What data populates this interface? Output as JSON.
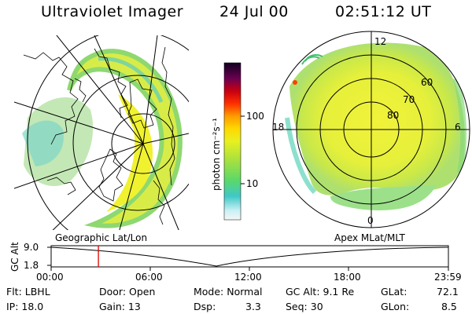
{
  "header": {
    "instrument": "Ultraviolet Imager",
    "date": "24 Jul 00",
    "time": "02:51:12 UT"
  },
  "colorbar": {
    "unit_label": "photon cm⁻²s⁻¹",
    "ticks": [
      "100",
      "10"
    ],
    "scale": "log"
  },
  "panels": {
    "left_caption": "Geographic Lat/Lon",
    "right_caption": "Apex MLat/MLT"
  },
  "polar_plot": {
    "mlt_labels": [
      "12",
      "18",
      "6",
      "0"
    ],
    "lat_labels": [
      "60",
      "70",
      "80"
    ]
  },
  "altitude_plot": {
    "ylabel": "GC Alt",
    "yticks": [
      "9.0",
      "1.8"
    ],
    "xticks": [
      "00:00",
      "06:00",
      "12:00",
      "18:00",
      "23:59"
    ],
    "marker_time": "02:51:12",
    "marker_color": "#e00000"
  },
  "params": {
    "filter": "Flt: LBHL",
    "ip": "IP: 18.0",
    "door": "Door: Open",
    "gain": "Gain: 13",
    "mode": "Mode: Normal",
    "dsp_label": "Dsp:",
    "dsp_value": "3.3",
    "gc_alt": "GC Alt: 9.1 Re",
    "seq": "Seq: 30",
    "glat_label": "GLat:",
    "glat_value": "72.1",
    "glon_label": "GLon:",
    "glon_value": "8.5"
  }
}
